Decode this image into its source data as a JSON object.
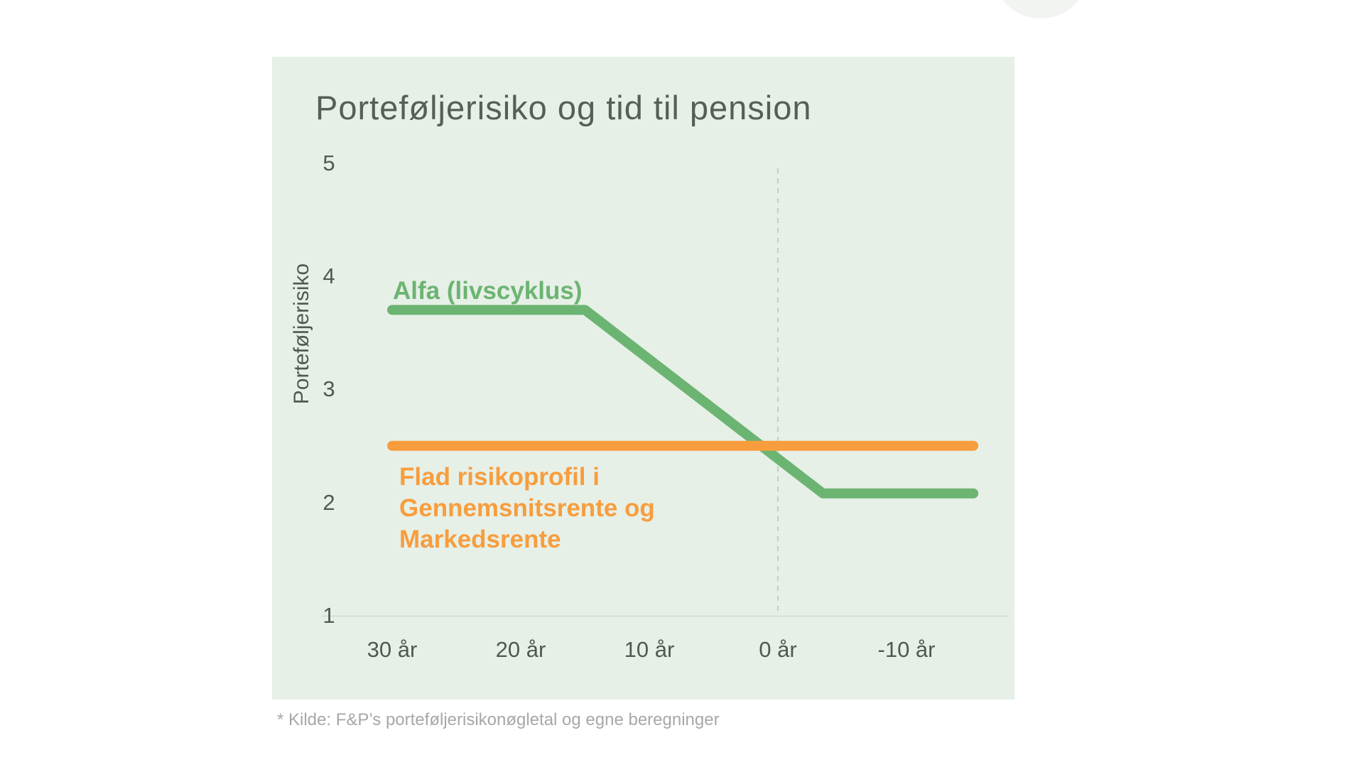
{
  "page": {
    "footer_note": "* Kilde: F&P’s porteføljerisikonøgletal og egne beregninger"
  },
  "chart_data": {
    "type": "line",
    "title": "Porteføljerisiko og tid til pension",
    "ylabel": "Porteføljerisiko",
    "xlabel": "",
    "x_tick_labels": [
      "30 år",
      "20 år",
      "10 år",
      "0 år",
      "-10 år"
    ],
    "x_tick_values": [
      30,
      20,
      10,
      0,
      -10
    ],
    "y_tick_labels": [
      "5",
      "4",
      "3",
      "2",
      "1"
    ],
    "y_tick_values": [
      5,
      4,
      3,
      2,
      1
    ],
    "ylim": [
      1,
      5
    ],
    "xlim_years": [
      30.5,
      -15.5
    ],
    "grid": false,
    "legend_position": "inline-labels",
    "reference_line": {
      "x": 0,
      "style": "dashed",
      "top_value": 4.95
    },
    "series": [
      {
        "name": "Alfa (livscyklus)",
        "label_text": "Alfa (livscyklus)",
        "color": "#6cb472",
        "points": [
          {
            "x": 30,
            "y": 3.7
          },
          {
            "x": 15,
            "y": 3.7
          },
          {
            "x": -3.5,
            "y": 2.08
          },
          {
            "x": -15.2,
            "y": 2.08
          }
        ]
      },
      {
        "name": "Flad risikoprofil i Gennemsnitsrente og Markedsrente",
        "label_text": "Flad risikoprofil i\nGennemsnitsrente og\nMarkedsrente",
        "color": "#f89d3d",
        "points": [
          {
            "x": 30,
            "y": 2.5
          },
          {
            "x": -15.2,
            "y": 2.5
          }
        ]
      }
    ],
    "colors": {
      "panel_bg": "#e6f0e7",
      "title_text": "#565e57",
      "tick_text": "#515851",
      "axis_line": "#d8ded8",
      "dashed_line": "#c3cdc4",
      "footer_text": "#a6a8a6"
    }
  }
}
